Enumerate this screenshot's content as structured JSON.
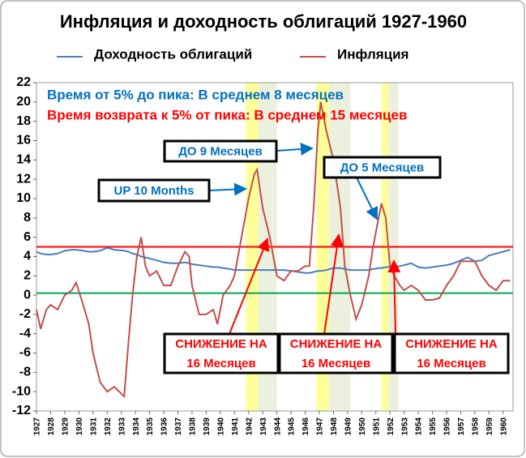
{
  "chart_data": {
    "type": "line",
    "title": "Инфляция и доходность облигаций 1927-1960",
    "x": [
      1927.0,
      1927.3,
      1927.7,
      1928.0,
      1928.5,
      1929.0,
      1929.5,
      1929.8,
      1930.3,
      1930.7,
      1931.0,
      1931.5,
      1932.0,
      1932.5,
      1933.2,
      1933.5,
      1933.8,
      1934.1,
      1934.4,
      1934.7,
      1935.0,
      1935.5,
      1936.0,
      1936.5,
      1937.0,
      1937.5,
      1937.8,
      1938.0,
      1938.5,
      1939.0,
      1939.5,
      1939.8,
      1940.2,
      1940.7,
      1941.0,
      1941.5,
      1942.0,
      1942.4,
      1942.6,
      1943.0,
      1943.5,
      1944.0,
      1944.5,
      1945.0,
      1945.5,
      1946.0,
      1946.3,
      1946.6,
      1946.9,
      1947.1,
      1947.5,
      1948.0,
      1948.5,
      1948.8,
      1949.2,
      1949.6,
      1950.0,
      1950.5,
      1950.8,
      1951.2,
      1951.4,
      1951.7,
      1952.0,
      1952.3,
      1952.7,
      1953.0,
      1953.5,
      1954.0,
      1954.5,
      1955.0,
      1955.5,
      1956.0,
      1956.5,
      1957.0,
      1957.5,
      1958.0,
      1958.5,
      1959.0,
      1959.5,
      1960.0,
      1960.5
    ],
    "series": [
      {
        "name": "Доходность облигаций",
        "color": "#4a7ebb",
        "values": [
          4.5,
          4.3,
          4.2,
          4.2,
          4.3,
          4.6,
          4.7,
          4.7,
          4.6,
          4.5,
          4.5,
          4.6,
          4.9,
          4.7,
          4.6,
          4.5,
          4.3,
          4.2,
          4.0,
          3.9,
          3.8,
          3.6,
          3.4,
          3.3,
          3.3,
          3.4,
          3.3,
          3.2,
          3.1,
          3.0,
          2.9,
          2.9,
          2.8,
          2.7,
          2.6,
          2.6,
          2.6,
          2.6,
          2.6,
          2.6,
          2.6,
          2.6,
          2.6,
          2.5,
          2.4,
          2.3,
          2.3,
          2.4,
          2.5,
          2.5,
          2.6,
          2.8,
          2.8,
          2.7,
          2.6,
          2.6,
          2.6,
          2.6,
          2.7,
          2.8,
          2.8,
          2.9,
          2.9,
          2.9,
          3.0,
          3.1,
          3.3,
          2.9,
          2.8,
          2.9,
          3.0,
          3.1,
          3.3,
          3.6,
          3.9,
          3.5,
          3.6,
          4.1,
          4.3,
          4.5,
          4.7
        ]
      },
      {
        "name": "Инфляция",
        "color": "#c0504d",
        "values": [
          -1.5,
          -3.5,
          -1.5,
          -1,
          -1.5,
          0,
          0.5,
          1.3,
          -1,
          -3,
          -6,
          -9,
          -10,
          -9.5,
          -10.5,
          -5,
          0,
          4,
          6,
          3,
          2,
          2.5,
          1,
          1,
          3,
          4.5,
          4,
          1,
          -2,
          -2,
          -1.5,
          -3,
          0,
          1,
          2,
          6,
          10,
          12.5,
          13,
          9,
          6,
          2,
          1.5,
          2.5,
          2.5,
          3,
          3,
          9,
          17,
          20,
          17,
          14,
          9,
          3,
          0,
          -2.5,
          -1,
          2,
          5,
          8,
          9.5,
          8,
          3,
          2,
          1,
          0.5,
          1,
          0.5,
          -0.5,
          -0.5,
          -0.3,
          1,
          2,
          3.5,
          3.5,
          3.5,
          2,
          1,
          0.5,
          1.5,
          1.5
        ]
      }
    ],
    "xlim": [
      1927,
      1960.7
    ],
    "xticks": [
      1927,
      1928,
      1929,
      1930,
      1931,
      1932,
      1933,
      1934,
      1935,
      1936,
      1937,
      1938,
      1939,
      1940,
      1941,
      1942,
      1943,
      1944,
      1945,
      1946,
      1947,
      1948,
      1949,
      1950,
      1951,
      1952,
      1953,
      1954,
      1955,
      1956,
      1957,
      1958,
      1959,
      1960
    ],
    "ylim": [
      -12,
      22
    ],
    "yticks": [
      -12,
      -10,
      -8,
      -6,
      -4,
      -2,
      0,
      2,
      4,
      6,
      8,
      10,
      12,
      14,
      16,
      18,
      20,
      22
    ],
    "legend": "top",
    "reference_lines": [
      {
        "value": 5,
        "color": "#ff0000"
      },
      {
        "value": 0.2,
        "color": "#00a651"
      }
    ],
    "shaded_spans": [
      {
        "start": 1941.8,
        "end": 1942.7,
        "color": "#ffff99"
      },
      {
        "start": 1942.7,
        "end": 1944.0,
        "color": "#ebf1de"
      },
      {
        "start": 1946.8,
        "end": 1947.7,
        "color": "#ffff99"
      },
      {
        "start": 1947.7,
        "end": 1949.2,
        "color": "#ebf1de"
      },
      {
        "start": 1951.4,
        "end": 1951.9,
        "color": "#ffff99"
      },
      {
        "start": 1951.9,
        "end": 1952.6,
        "color": "#ebf1de"
      }
    ],
    "notes": [
      {
        "text": "Время от 5% до пика: В среднем 8 месяцев",
        "color": "#0070c0"
      },
      {
        "text": "Время возврата к 5% от пика: В среднем 15 месяцев",
        "color": "#ff0000"
      }
    ],
    "callouts": [
      {
        "lines": [
          "UP 10 Months"
        ],
        "color": "#0070c0"
      },
      {
        "lines": [
          "ДО 9 Месяцев"
        ],
        "color": "#0070c0"
      },
      {
        "lines": [
          "ДО 5 Месяцев"
        ],
        "color": "#0070c0"
      },
      {
        "lines": [
          "СНИЖЕНИЕ НА",
          "16 Месяцев"
        ],
        "color": "#ff0000"
      },
      {
        "lines": [
          "СНИЖЕНИЕ НА",
          "16 Месяцев"
        ],
        "color": "#ff0000"
      },
      {
        "lines": [
          "СНИЖЕНИЕ НА",
          "16 Месяцев"
        ],
        "color": "#ff0000"
      }
    ]
  }
}
